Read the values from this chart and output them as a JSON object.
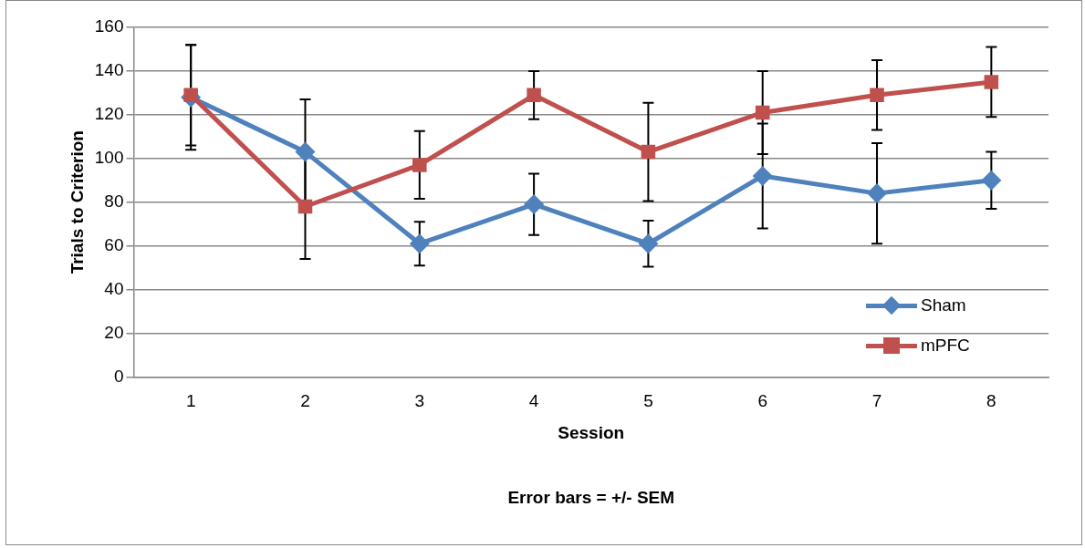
{
  "chart_data": {
    "type": "line",
    "xlabel": "Session",
    "ylabel": "Trials to Criterion",
    "annotations": [
      "Error bars = +/- SEM"
    ],
    "categories": [
      "1",
      "2",
      "3",
      "4",
      "5",
      "6",
      "7",
      "8"
    ],
    "ylim": [
      0,
      160
    ],
    "yticks": [
      0,
      20,
      40,
      60,
      80,
      100,
      120,
      140,
      160
    ],
    "grid": "y",
    "legend": "bottom right",
    "series": [
      {
        "name": "Sham",
        "color": "#4f81bd",
        "marker": "diamond",
        "values": [
          128,
          103,
          61,
          79,
          61,
          92,
          84,
          90
        ],
        "errors": [
          24,
          24,
          10,
          14,
          10.5,
          24,
          23,
          13
        ]
      },
      {
        "name": "mPFC",
        "color": "#c0504d",
        "marker": "square",
        "values": [
          129,
          78,
          97,
          129,
          103,
          121,
          129,
          135
        ],
        "errors": [
          23,
          24,
          15.5,
          11,
          22.5,
          19,
          16,
          16
        ]
      }
    ]
  }
}
